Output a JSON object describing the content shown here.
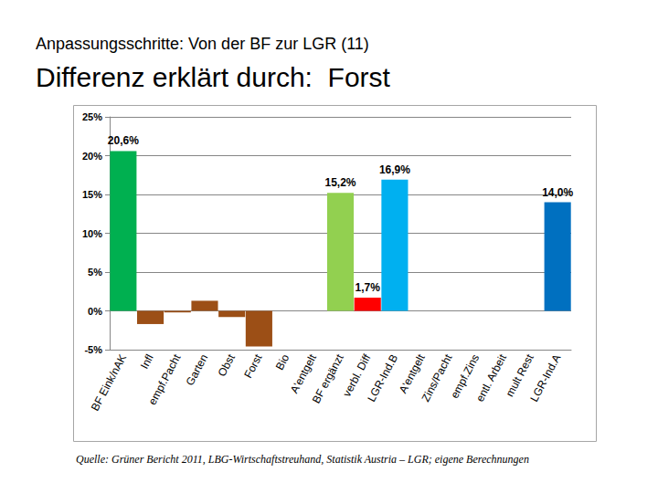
{
  "chart_data": {
    "type": "bar",
    "subtitle": "Anpassungsschritte: Von der BF zur LGR (11)",
    "title": "Differenz erklärt durch:  Forst",
    "source": "Quelle: Grüner Bericht 2011, LBG-Wirtschaftstreuhand, Statistik Austria – LGR; eigene Berechnungen",
    "categories": [
      "BF Eink/nAK",
      "Infl",
      "empf.Pacht",
      "Garten",
      "Obst",
      "Forst",
      "Bio",
      "A'entgelt",
      "BF ergänzt",
      "verbl. Diff",
      "LGR-Ind.B",
      "A'entgelt",
      "Zins/Pacht",
      "empf.Zins",
      "entl. Arbeit",
      "mult Rest",
      "LGR-Ind.A"
    ],
    "values": [
      20.6,
      -1.7,
      -0.2,
      1.3,
      -0.8,
      -4.6,
      null,
      null,
      15.2,
      1.7,
      16.9,
      null,
      null,
      null,
      null,
      null,
      14.0
    ],
    "value_labels": [
      "20,6%",
      null,
      null,
      null,
      null,
      null,
      null,
      null,
      "15,2%",
      "1,7%",
      "16,9%",
      null,
      null,
      null,
      null,
      null,
      "14,0%"
    ],
    "colors": [
      "#00b050",
      "#9c4f16",
      "#9c4f16",
      "#9c4f16",
      "#9c4f16",
      "#9c4f16",
      null,
      null,
      "#92d050",
      "#ff0000",
      "#00b0f0",
      null,
      null,
      null,
      null,
      null,
      "#0070c0"
    ],
    "data_labels": true,
    "ylim": [
      -5,
      25
    ],
    "yticks": [
      {
        "value": -5,
        "label": "-5%"
      },
      {
        "value": 0,
        "label": "0%"
      },
      {
        "value": 5,
        "label": "5%"
      },
      {
        "value": 10,
        "label": "10%"
      },
      {
        "value": 15,
        "label": "15%"
      },
      {
        "value": 20,
        "label": "20%"
      },
      {
        "value": 25,
        "label": "25%"
      }
    ],
    "grid": true
  }
}
